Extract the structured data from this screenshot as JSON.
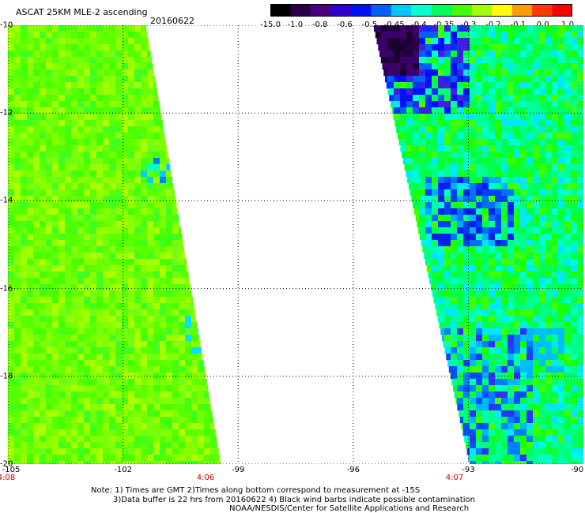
{
  "header": {
    "title": "ASCAT 25KM MLE-2 ascending",
    "date": "20160622"
  },
  "colorbar": {
    "labels": [
      "-15.0",
      "-1.0",
      "-0.8",
      "-0.6",
      "-0.5",
      "-0.45",
      "-0.4",
      "-0.35",
      "-0.3",
      "-0.2",
      "-0.1",
      "0.0",
      "1.0"
    ],
    "colors": [
      "#000000",
      "#2a0046",
      "#4b0082",
      "#3000d0",
      "#0010ff",
      "#0060ff",
      "#00c8ff",
      "#00ffd2",
      "#00ff5a",
      "#40ff00",
      "#a0ff00",
      "#ffff00",
      "#ff9a00",
      "#ff3a00",
      "#ff0000"
    ]
  },
  "axes": {
    "lat_labels": [
      "-10",
      "-12",
      "-14",
      "-16",
      "-18",
      "-20"
    ],
    "lon_labels": [
      "-105",
      "-102",
      "-99",
      "-96",
      "-93",
      "-90"
    ],
    "lat_range": [
      -20,
      -10
    ],
    "lon_range": [
      -105,
      -90
    ]
  },
  "swath_times": [
    "4:08",
    "4:06",
    "4:07"
  ],
  "notes": {
    "line1": "Note: 1) Times are GMT 2)Times along bottom correspond to measurement at -15S",
    "line2": "3)Data buffer is 22 hrs from 20160622 4) Black wind barbs indicate possible contamination",
    "line3": "NOAA/NESDIS/Center for Satellite Applications and Research"
  }
}
